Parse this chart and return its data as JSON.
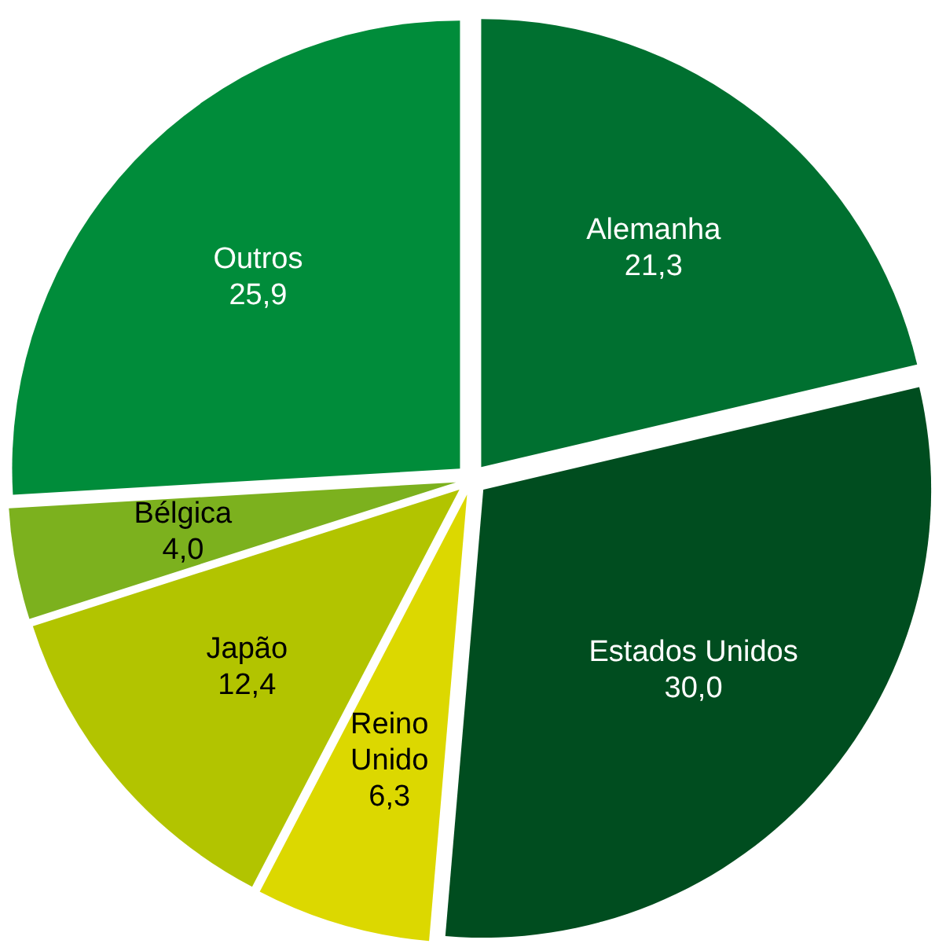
{
  "chart_data": {
    "type": "pie",
    "categories": [
      "Alemanha",
      "Estados Unidos",
      "Reino Unido",
      "Japão",
      "Bélgica",
      "Outros"
    ],
    "values": [
      21.3,
      30.0,
      6.3,
      12.4,
      4.0,
      25.9
    ],
    "colors": [
      "#007030",
      "#004d1f",
      "#dcd800",
      "#b2c400",
      "#7cb11e",
      "#008c3a"
    ],
    "value_labels": [
      "21,3",
      "30,0",
      "6,3",
      "12,4",
      "4,0",
      "25,9"
    ]
  }
}
